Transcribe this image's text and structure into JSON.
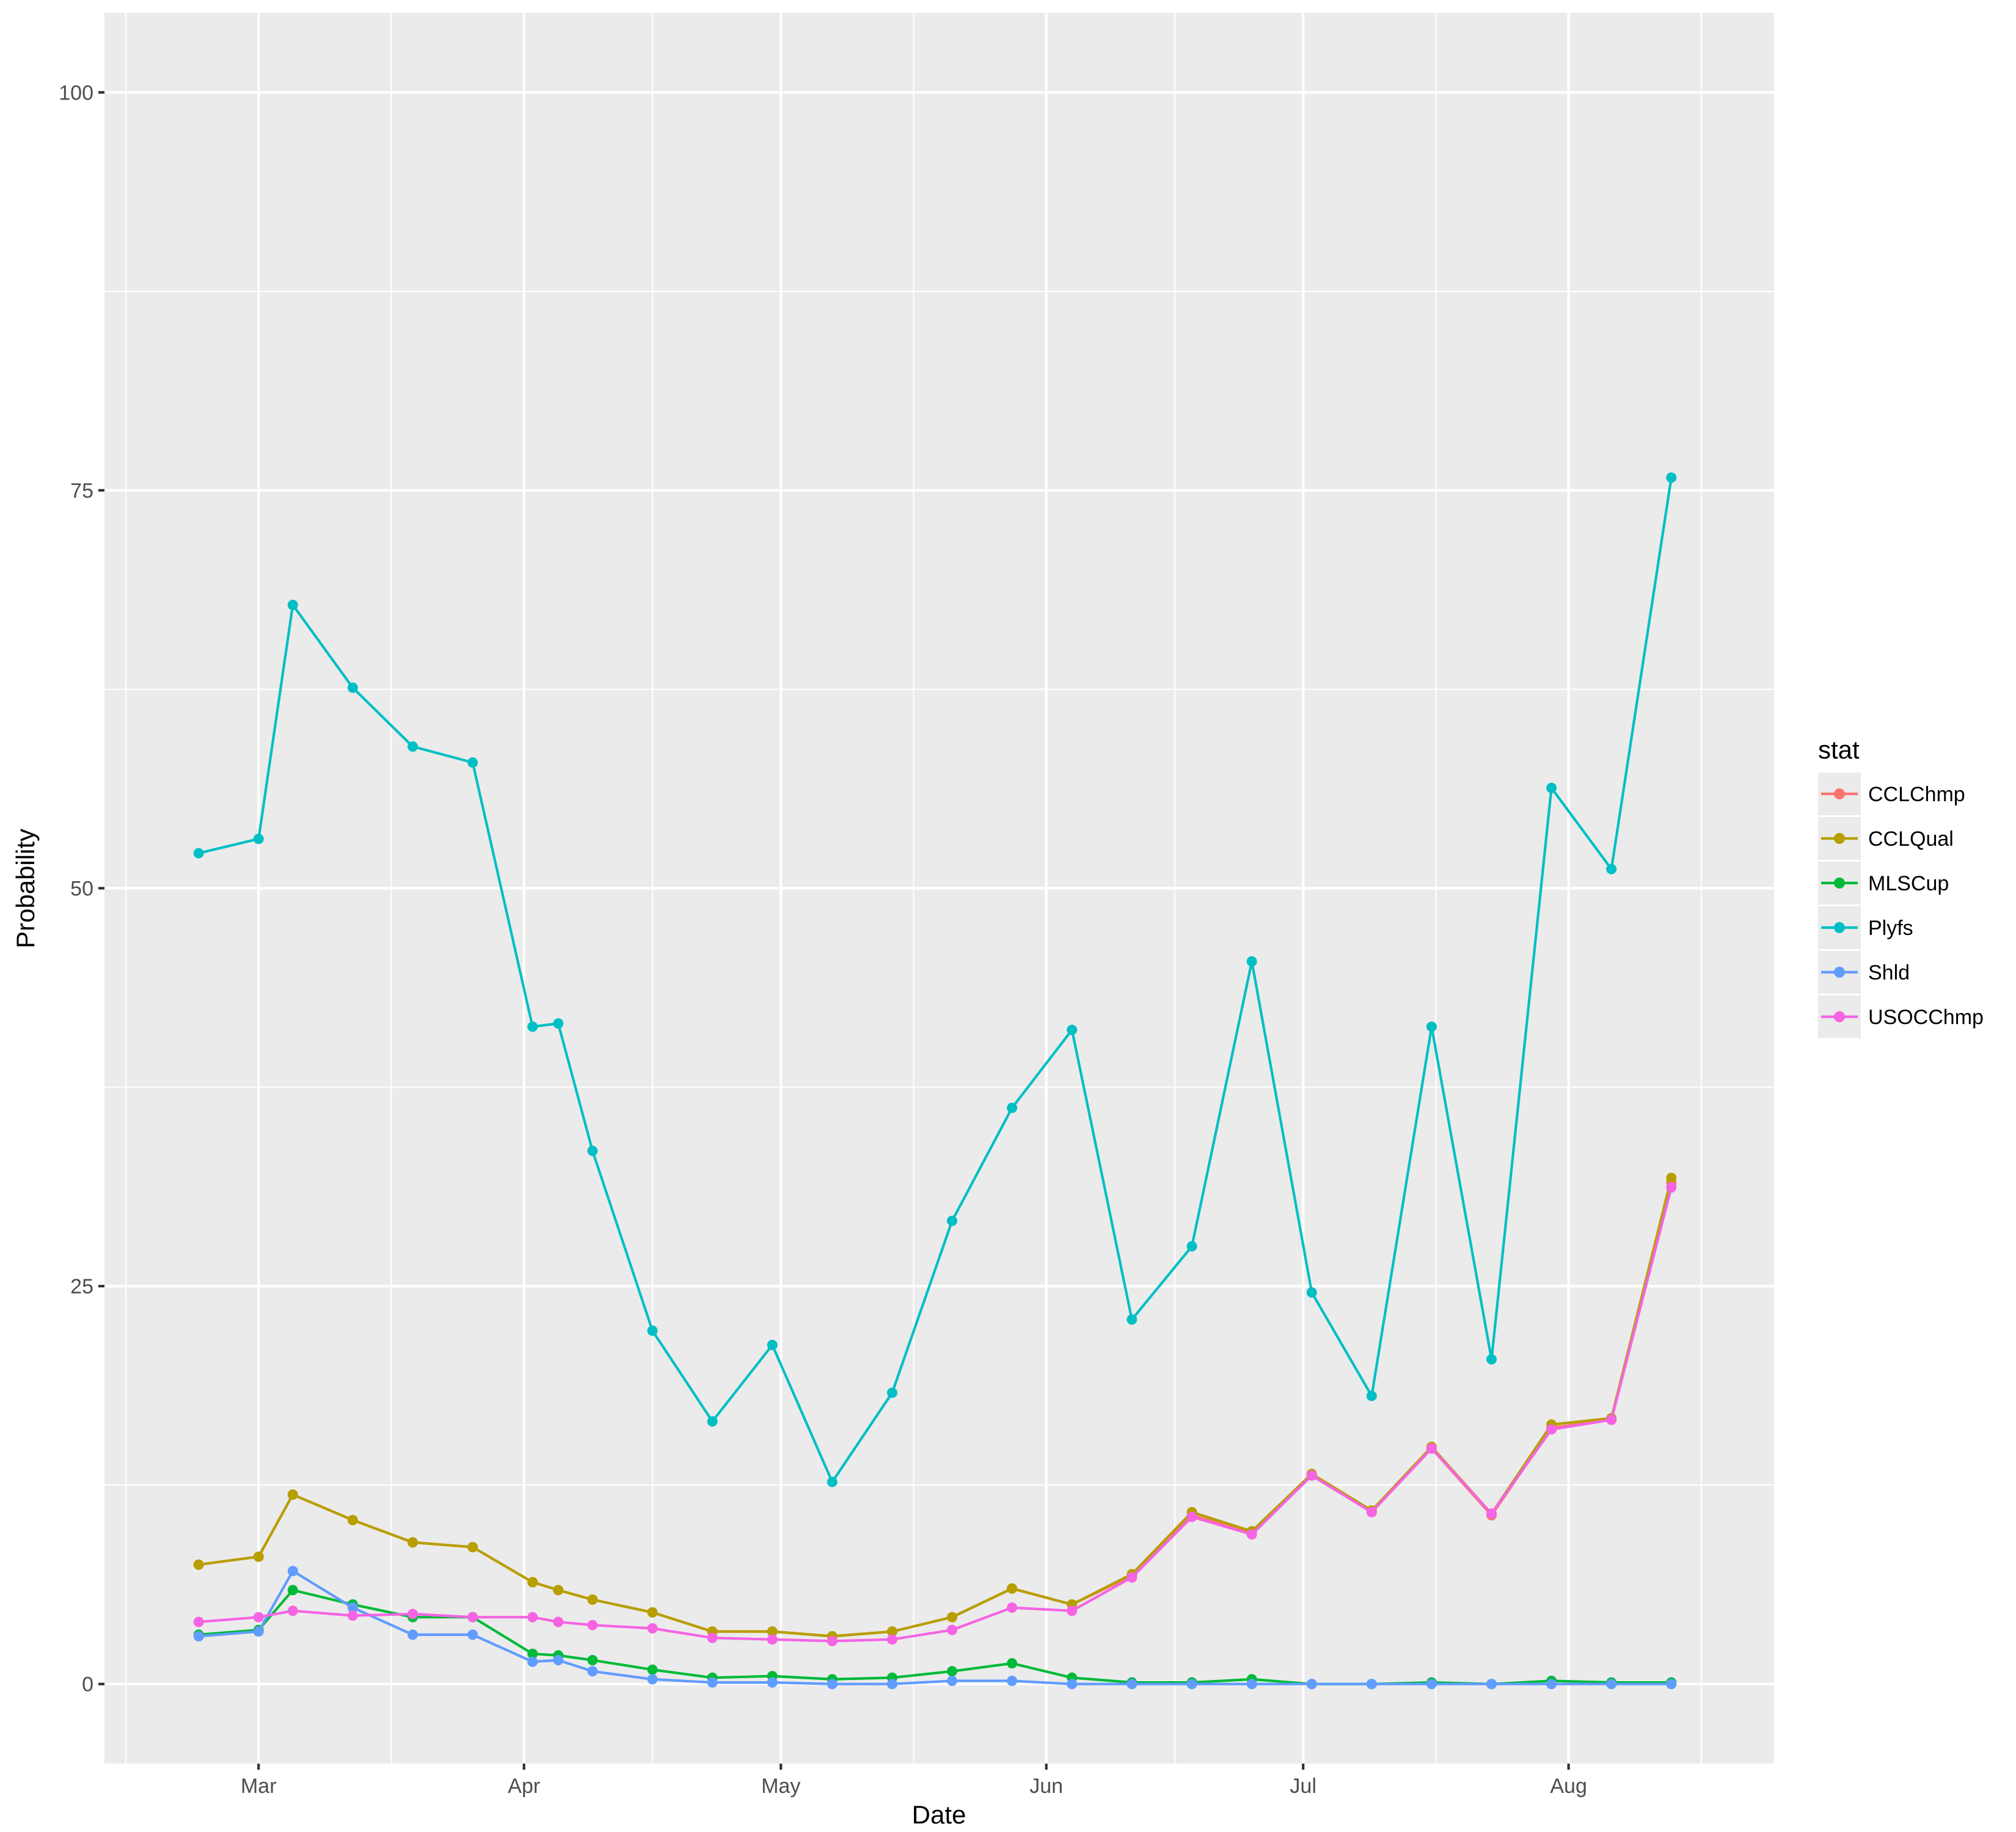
{
  "chart_data": {
    "type": "line",
    "title": "",
    "xlabel": "Date",
    "ylabel": "Probability",
    "x_ticks": [
      {
        "label": "Mar",
        "date": "2017-03-01"
      },
      {
        "label": "Apr",
        "date": "2017-04-01"
      },
      {
        "label": "May",
        "date": "2017-05-01"
      },
      {
        "label": "Jun",
        "date": "2017-06-01"
      },
      {
        "label": "Jul",
        "date": "2017-07-01"
      },
      {
        "label": "Aug",
        "date": "2017-08-01"
      }
    ],
    "y_ticks": [
      0,
      25,
      50,
      75,
      100
    ],
    "xlim": [
      "2017-02-11",
      "2017-08-25"
    ],
    "ylim": [
      -5,
      105
    ],
    "grid": true,
    "legend_title": "stat",
    "legend_position": "right",
    "x": [
      "2017-02-22",
      "2017-03-01",
      "2017-03-05",
      "2017-03-12",
      "2017-03-19",
      "2017-03-26",
      "2017-04-02",
      "2017-04-05",
      "2017-04-09",
      "2017-04-16",
      "2017-04-23",
      "2017-04-30",
      "2017-05-07",
      "2017-05-14",
      "2017-05-21",
      "2017-05-28",
      "2017-06-04",
      "2017-06-11",
      "2017-06-18",
      "2017-06-25",
      "2017-07-02",
      "2017-07-09",
      "2017-07-16",
      "2017-07-23",
      "2017-07-30",
      "2017-08-06",
      "2017-08-13"
    ],
    "series": [
      {
        "name": "CCLChmp",
        "color": "#F8766D",
        "values": [
          7.5,
          8.0,
          11.9,
          10.3,
          8.9,
          8.6,
          6.4,
          5.9,
          5.3,
          4.5,
          3.3,
          3.3,
          3.0,
          3.3,
          4.2,
          6.0,
          5.0,
          6.8,
          10.6,
          9.5,
          13.1,
          10.8,
          14.8,
          10.6,
          16.1,
          16.6,
          31.5
        ]
      },
      {
        "name": "CCLQual",
        "color": "#B79F00",
        "values": [
          7.5,
          8.0,
          11.9,
          10.3,
          8.9,
          8.6,
          6.4,
          5.9,
          5.3,
          4.5,
          3.3,
          3.3,
          3.0,
          3.3,
          4.2,
          6.0,
          5.0,
          6.9,
          10.8,
          9.6,
          13.2,
          10.9,
          14.9,
          10.7,
          16.3,
          16.7,
          31.8
        ]
      },
      {
        "name": "MLSCup",
        "color": "#00BA38",
        "values": [
          3.1,
          3.4,
          5.9,
          5.0,
          4.2,
          4.2,
          1.9,
          1.8,
          1.5,
          0.9,
          0.4,
          0.5,
          0.3,
          0.4,
          0.8,
          1.3,
          0.4,
          0.1,
          0.1,
          0.3,
          0.0,
          0.0,
          0.1,
          0.0,
          0.2,
          0.1,
          0.1
        ]
      },
      {
        "name": "Plyfs",
        "color": "#00BFC4",
        "values": [
          52.2,
          53.1,
          67.8,
          62.6,
          58.9,
          57.9,
          41.3,
          41.5,
          33.5,
          22.2,
          16.5,
          21.3,
          12.7,
          18.3,
          29.1,
          36.2,
          41.1,
          22.9,
          27.5,
          45.4,
          24.6,
          18.1,
          41.3,
          20.4,
          56.3,
          51.2,
          75.8
        ]
      },
      {
        "name": "Shld",
        "color": "#619CFF",
        "values": [
          3.0,
          3.3,
          7.1,
          4.8,
          3.1,
          3.1,
          1.4,
          1.5,
          0.8,
          0.3,
          0.1,
          0.1,
          0.0,
          0.0,
          0.2,
          0.2,
          0.0,
          0.0,
          0.0,
          0.0,
          0.0,
          0.0,
          0.0,
          0.0,
          0.0,
          0.0,
          0.0
        ]
      },
      {
        "name": "USOCChmp",
        "color": "#F564E3",
        "values": [
          3.9,
          4.2,
          4.6,
          4.3,
          4.4,
          4.2,
          4.2,
          3.9,
          3.7,
          3.5,
          2.9,
          2.8,
          2.7,
          2.8,
          3.4,
          4.8,
          4.6,
          6.7,
          10.5,
          9.4,
          13.1,
          10.8,
          14.8,
          10.7,
          16.0,
          16.6,
          31.2
        ]
      }
    ]
  }
}
